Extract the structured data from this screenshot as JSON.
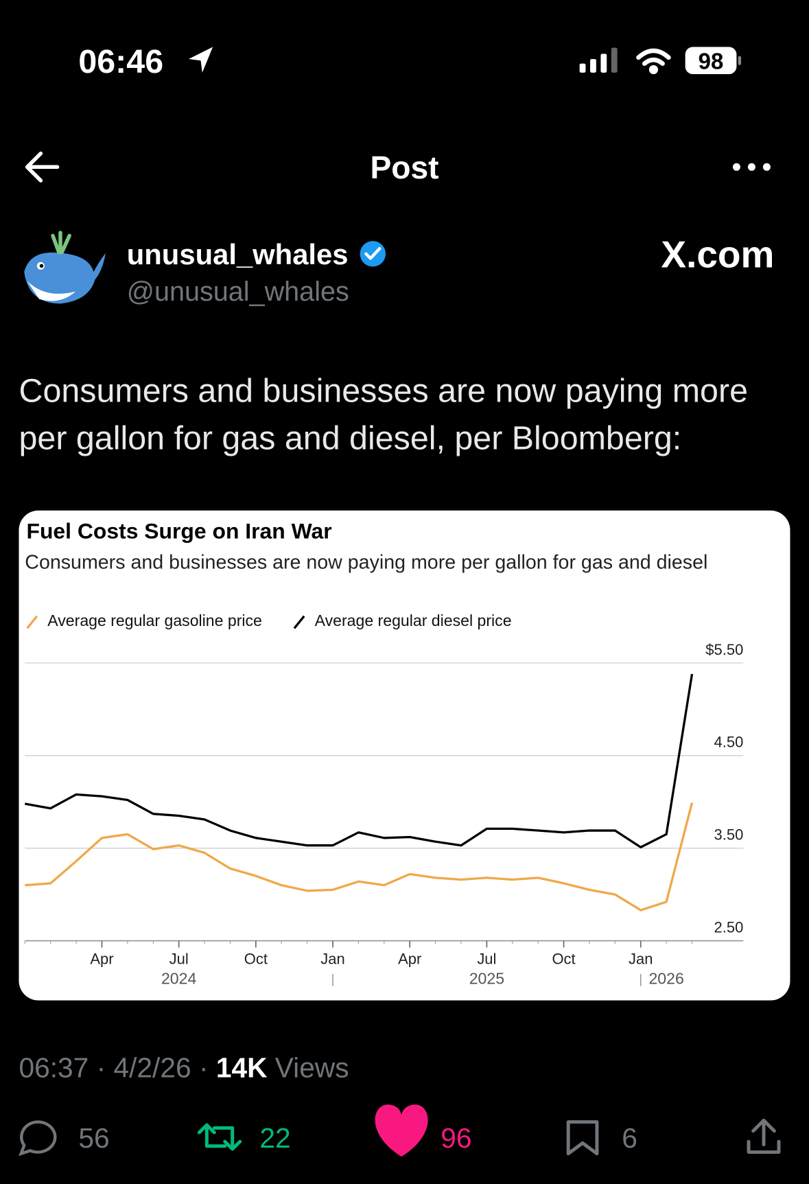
{
  "status_bar": {
    "time": "06:46",
    "battery": "98"
  },
  "header": {
    "title": "Post"
  },
  "author": {
    "name": "unusual_whales",
    "handle": "@unusual_whales",
    "source": "X.com"
  },
  "post": {
    "text": "Consumers and businesses are now paying more per gallon for gas and diesel, per Bloomberg:",
    "timestamp": {
      "time": "06:37",
      "separator": "·",
      "date": "4/2/26",
      "views": "14K",
      "views_label": "Views"
    }
  },
  "actions": {
    "replies": 56,
    "reposts": 22,
    "likes": 96,
    "bookmarks": 6
  },
  "chart_data": {
    "type": "line",
    "title": "Fuel Costs Surge on Iran War",
    "subtitle": "Consumers and businesses are now paying more per gallon for gas and diesel",
    "x": [
      "2024-01",
      "2024-02",
      "2024-03",
      "2024-04",
      "2024-05",
      "2024-06",
      "2024-07",
      "2024-08",
      "2024-09",
      "2024-10",
      "2024-11",
      "2024-12",
      "2025-01",
      "2025-02",
      "2025-03",
      "2025-04",
      "2025-05",
      "2025-06",
      "2025-07",
      "2025-08",
      "2025-09",
      "2025-10",
      "2025-11",
      "2025-12",
      "2026-01",
      "2026-02",
      "2026-03"
    ],
    "series": [
      {
        "name": "Average regular gasoline price",
        "color": "#f0a84a",
        "values": [
          3.1,
          3.12,
          3.36,
          3.61,
          3.65,
          3.49,
          3.53,
          3.45,
          3.28,
          3.2,
          3.1,
          3.04,
          3.05,
          3.14,
          3.1,
          3.22,
          3.18,
          3.16,
          3.18,
          3.16,
          3.18,
          3.12,
          3.05,
          3.0,
          2.83,
          2.92,
          3.99
        ]
      },
      {
        "name": "Average regular diesel price",
        "color": "#000000",
        "values": [
          3.98,
          3.93,
          4.08,
          4.06,
          4.02,
          3.87,
          3.85,
          3.81,
          3.69,
          3.61,
          3.57,
          3.53,
          3.53,
          3.67,
          3.61,
          3.62,
          3.57,
          3.53,
          3.71,
          3.71,
          3.69,
          3.67,
          3.69,
          3.69,
          3.51,
          3.65,
          5.38
        ]
      }
    ],
    "xlim": [
      "2024-01",
      "2026-05"
    ],
    "xticks": [
      {
        "value": "2024-04",
        "label": "Apr"
      },
      {
        "value": "2024-07",
        "label": "Jul"
      },
      {
        "value": "2024-10",
        "label": "Oct"
      },
      {
        "value": "2025-01",
        "label": "Jan"
      },
      {
        "value": "2025-04",
        "label": "Apr"
      },
      {
        "value": "2025-07",
        "label": "Jul"
      },
      {
        "value": "2025-10",
        "label": "Oct"
      },
      {
        "value": "2026-01",
        "label": "Jan"
      }
    ],
    "x_year_labels": [
      {
        "value": "2024-07",
        "label": "2024"
      },
      {
        "value": "2025-07",
        "label": "2025"
      },
      {
        "value": "2026-02",
        "label": "2026"
      }
    ],
    "ylim": [
      2.5,
      5.5
    ],
    "yticks": [
      {
        "value": 2.5,
        "label": "2.50"
      },
      {
        "value": 3.5,
        "label": "3.50"
      },
      {
        "value": 4.5,
        "label": "4.50"
      },
      {
        "value": 5.5,
        "label": "$5.50"
      }
    ],
    "grid": true
  }
}
